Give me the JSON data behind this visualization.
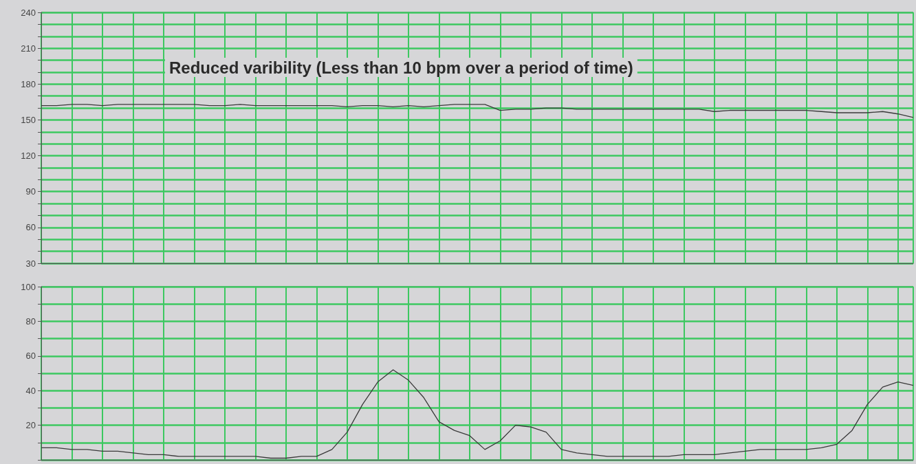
{
  "chart_data": [
    {
      "type": "line",
      "title": "Reduced varibility (Less than 10 bpm over a period of time)",
      "categories": [
        null,
        null,
        null,
        null,
        null,
        null,
        null,
        null,
        null,
        null,
        null,
        null,
        null,
        null,
        null,
        null,
        null,
        null,
        null,
        null,
        null,
        null,
        null,
        null,
        null,
        null,
        null,
        null,
        null,
        null,
        null,
        null,
        null,
        null,
        null,
        null,
        null,
        null,
        null,
        null,
        null,
        null,
        null,
        null,
        null,
        null,
        null,
        null,
        null,
        null,
        null,
        null,
        null,
        null,
        null,
        null,
        null,
        null
      ],
      "series": [
        {
          "color": "#3a3a3a",
          "values": [
            162,
            162,
            163,
            163,
            162,
            163,
            163,
            163,
            163,
            163,
            163,
            162,
            162,
            163,
            162,
            162,
            162,
            162,
            162,
            162,
            161,
            162,
            162,
            161,
            162,
            161,
            162,
            163,
            163,
            163,
            158,
            159,
            159,
            160,
            160,
            159,
            159,
            159,
            159,
            159,
            159,
            159,
            159,
            159,
            157,
            158,
            158,
            158,
            158,
            158,
            158,
            157,
            156,
            156,
            156,
            157,
            155,
            152
          ]
        }
      ],
      "ylim": [
        30,
        240
      ],
      "yticks": [
        30,
        {
          "value": 40,
          "label": null
        },
        {
          "value": 50,
          "label": null
        },
        60,
        {
          "value": 70,
          "label": null
        },
        {
          "value": 80,
          "label": null
        },
        90,
        {
          "value": 100,
          "label": null
        },
        {
          "value": 110,
          "label": null
        },
        120,
        {
          "value": 130,
          "label": null
        },
        {
          "value": 140,
          "label": null
        },
        150,
        {
          "value": 160,
          "label": null
        },
        {
          "value": 170,
          "label": null
        },
        180,
        {
          "value": 190,
          "label": null
        },
        {
          "value": 200,
          "label": null
        },
        210,
        {
          "value": 220,
          "label": null
        },
        {
          "value": 230,
          "label": null
        },
        240
      ],
      "grid": true,
      "tick_labels": "y",
      "marker": "none",
      "line_style": "solid"
    },
    {
      "type": "line",
      "categories": [
        null,
        null,
        null,
        null,
        null,
        null,
        null,
        null,
        null,
        null,
        null,
        null,
        null,
        null,
        null,
        null,
        null,
        null,
        null,
        null,
        null,
        null,
        null,
        null,
        null,
        null,
        null,
        null,
        null,
        null,
        null,
        null,
        null,
        null,
        null,
        null,
        null,
        null,
        null,
        null,
        null,
        null,
        null,
        null,
        null,
        null,
        null,
        null,
        null,
        null,
        null,
        null,
        null,
        null,
        null,
        null,
        null,
        null
      ],
      "series": [
        {
          "color": "#3a3a3a",
          "values": [
            7,
            7,
            6,
            6,
            5,
            5,
            4,
            3,
            3,
            2,
            2,
            2,
            2,
            2,
            2,
            1,
            1,
            2,
            2,
            6,
            16,
            32,
            45,
            52,
            46,
            36,
            22,
            17,
            14,
            6,
            11,
            20,
            19,
            16,
            6,
            4,
            3,
            2,
            2,
            2,
            2,
            2,
            3,
            3,
            3,
            4,
            5,
            6,
            6,
            6,
            6,
            7,
            9,
            17,
            32,
            42,
            45,
            43
          ]
        }
      ],
      "ylim": [
        0,
        100
      ],
      "yticks": [
        {
          "value": 0,
          "label": null
        },
        {
          "value": 10,
          "label": null
        },
        20,
        {
          "value": 30,
          "label": null
        },
        40,
        {
          "value": 50,
          "label": null
        },
        60,
        {
          "value": 70,
          "label": null
        },
        80,
        {
          "value": 90,
          "label": null
        },
        100
      ],
      "grid": true,
      "tick_labels": "y",
      "marker": "none",
      "line_style": "solid"
    }
  ]
}
